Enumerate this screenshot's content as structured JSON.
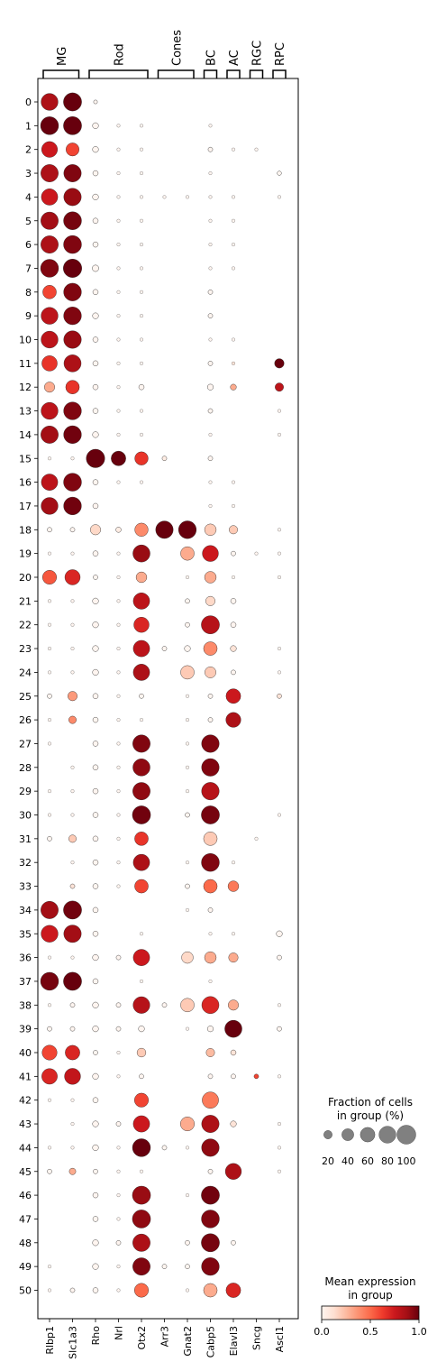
{
  "chart_data": {
    "type": "dotplot",
    "genes": [
      "Rlbp1",
      "Slc1a3",
      "Rho",
      "Nrl",
      "Otx2",
      "Arr3",
      "Gnat2",
      "Cabp5",
      "Elavl3",
      "Sncg",
      "Ascl1"
    ],
    "groups": [
      "0",
      "1",
      "2",
      "3",
      "4",
      "5",
      "6",
      "7",
      "8",
      "9",
      "10",
      "11",
      "12",
      "13",
      "14",
      "15",
      "16",
      "17",
      "18",
      "19",
      "20",
      "21",
      "22",
      "23",
      "24",
      "25",
      "26",
      "27",
      "28",
      "29",
      "30",
      "31",
      "32",
      "33",
      "34",
      "35",
      "36",
      "37",
      "38",
      "39",
      "40",
      "41",
      "42",
      "43",
      "44",
      "45",
      "46",
      "47",
      "48",
      "49",
      "50"
    ],
    "gene_groups": [
      {
        "label": "MG",
        "start": 0,
        "end": 1
      },
      {
        "label": "Rod",
        "start": 2,
        "end": 4
      },
      {
        "label": "Cones",
        "start": 5,
        "end": 6
      },
      {
        "label": "BC",
        "start": 7,
        "end": 7
      },
      {
        "label": "AC",
        "start": 8,
        "end": 8
      },
      {
        "label": "RGC",
        "start": 9,
        "end": 9
      },
      {
        "label": "RPC",
        "start": 10,
        "end": 10
      }
    ],
    "fraction": [
      [
        80,
        92,
        4,
        0,
        0,
        0,
        0,
        0,
        0,
        0,
        0
      ],
      [
        90,
        92,
        10,
        3,
        3,
        0,
        0,
        3,
        0,
        0,
        0
      ],
      [
        70,
        48,
        10,
        3,
        3,
        0,
        0,
        6,
        3,
        3,
        0
      ],
      [
        85,
        85,
        8,
        3,
        3,
        0,
        0,
        3,
        0,
        0,
        5
      ],
      [
        75,
        85,
        10,
        3,
        3,
        3,
        3,
        3,
        3,
        0,
        3
      ],
      [
        85,
        90,
        8,
        3,
        3,
        0,
        0,
        3,
        3,
        0,
        0
      ],
      [
        85,
        90,
        8,
        3,
        3,
        0,
        0,
        3,
        3,
        0,
        0
      ],
      [
        90,
        95,
        12,
        3,
        3,
        0,
        0,
        3,
        3,
        0,
        0
      ],
      [
        52,
        88,
        8,
        3,
        3,
        0,
        0,
        6,
        0,
        0,
        0
      ],
      [
        80,
        88,
        10,
        3,
        3,
        0,
        0,
        6,
        0,
        0,
        0
      ],
      [
        80,
        86,
        8,
        3,
        3,
        0,
        0,
        3,
        3,
        0,
        0
      ],
      [
        66,
        82,
        8,
        3,
        3,
        0,
        0,
        6,
        3,
        0,
        25
      ],
      [
        30,
        52,
        8,
        3,
        8,
        0,
        0,
        10,
        10,
        0,
        20
      ],
      [
        80,
        88,
        8,
        3,
        3,
        0,
        0,
        6,
        0,
        0,
        3
      ],
      [
        85,
        88,
        10,
        3,
        3,
        0,
        0,
        3,
        0,
        0,
        3
      ],
      [
        3,
        3,
        95,
        60,
        50,
        6,
        0,
        6,
        0,
        0,
        0
      ],
      [
        75,
        90,
        8,
        3,
        3,
        0,
        0,
        3,
        3,
        0,
        0
      ],
      [
        80,
        88,
        8,
        0,
        0,
        0,
        0,
        3,
        3,
        0,
        0
      ],
      [
        6,
        6,
        30,
        8,
        50,
        85,
        88,
        38,
        20,
        0,
        3
      ],
      [
        3,
        3,
        8,
        3,
        82,
        0,
        52,
        72,
        6,
        3,
        3
      ],
      [
        55,
        65,
        6,
        3,
        32,
        0,
        3,
        38,
        3,
        0,
        3
      ],
      [
        3,
        3,
        10,
        3,
        75,
        0,
        6,
        25,
        8,
        0,
        0
      ],
      [
        3,
        3,
        10,
        3,
        65,
        0,
        6,
        92,
        8,
        0,
        0
      ],
      [
        3,
        3,
        10,
        3,
        75,
        6,
        10,
        52,
        10,
        0,
        3
      ],
      [
        3,
        3,
        10,
        3,
        75,
        0,
        52,
        35,
        6,
        0,
        3
      ],
      [
        6,
        25,
        8,
        3,
        6,
        0,
        3,
        6,
        60,
        0,
        6
      ],
      [
        3,
        16,
        8,
        3,
        3,
        0,
        3,
        6,
        62,
        0,
        0
      ],
      [
        3,
        0,
        8,
        3,
        85,
        0,
        3,
        86,
        0,
        0,
        0
      ],
      [
        0,
        3,
        8,
        3,
        82,
        0,
        3,
        86,
        0,
        0,
        0
      ],
      [
        3,
        3,
        8,
        3,
        85,
        0,
        3,
        86,
        0,
        0,
        0
      ],
      [
        3,
        3,
        8,
        3,
        92,
        0,
        6,
        92,
        0,
        0,
        3
      ],
      [
        6,
        16,
        8,
        3,
        52,
        0,
        0,
        52,
        0,
        3,
        0
      ],
      [
        0,
        3,
        8,
        3,
        75,
        0,
        3,
        90,
        3,
        0,
        0
      ],
      [
        0,
        6,
        8,
        3,
        52,
        0,
        6,
        52,
        32,
        0,
        0
      ],
      [
        85,
        92,
        8,
        0,
        0,
        0,
        3,
        6,
        0,
        0,
        0
      ],
      [
        80,
        85,
        8,
        0,
        3,
        0,
        0,
        3,
        3,
        0,
        10
      ],
      [
        3,
        3,
        10,
        6,
        75,
        0,
        38,
        38,
        25,
        0,
        6
      ],
      [
        90,
        92,
        8,
        0,
        3,
        0,
        0,
        3,
        0,
        0,
        0
      ],
      [
        3,
        6,
        10,
        6,
        78,
        6,
        52,
        82,
        30,
        0,
        3
      ],
      [
        6,
        6,
        10,
        6,
        10,
        0,
        3,
        10,
        82,
        0,
        6
      ],
      [
        62,
        60,
        6,
        3,
        22,
        0,
        0,
        20,
        8,
        0,
        0
      ],
      [
        68,
        72,
        10,
        3,
        6,
        0,
        0,
        6,
        6,
        6,
        3
      ],
      [
        3,
        3,
        8,
        0,
        55,
        0,
        0,
        75,
        0,
        0,
        0
      ],
      [
        0,
        3,
        10,
        6,
        75,
        0,
        55,
        85,
        10,
        0,
        3
      ],
      [
        3,
        3,
        10,
        3,
        90,
        6,
        3,
        86,
        0,
        0,
        3
      ],
      [
        6,
        12,
        6,
        3,
        3,
        0,
        0,
        6,
        72,
        0,
        3
      ],
      [
        0,
        0,
        8,
        3,
        92,
        0,
        3,
        92,
        0,
        0,
        0
      ],
      [
        0,
        0,
        8,
        3,
        92,
        0,
        0,
        90,
        0,
        0,
        0
      ],
      [
        0,
        0,
        10,
        6,
        85,
        0,
        6,
        92,
        6,
        0,
        0
      ],
      [
        3,
        0,
        10,
        3,
        85,
        6,
        6,
        88,
        0,
        0,
        0
      ],
      [
        3,
        6,
        8,
        3,
        55,
        0,
        3,
        52,
        60,
        0,
        0
      ]
    ],
    "mean_expression": [
      [
        0.85,
        1.0,
        0,
        0,
        0,
        0,
        0,
        0,
        0,
        0,
        0
      ],
      [
        1.0,
        1.0,
        0,
        0,
        0,
        0,
        0,
        0,
        0,
        0,
        0
      ],
      [
        0.75,
        0.6,
        0,
        0,
        0,
        0,
        0,
        0,
        0,
        0,
        0
      ],
      [
        0.85,
        0.95,
        0,
        0,
        0,
        0,
        0,
        0,
        0,
        0,
        0
      ],
      [
        0.75,
        0.9,
        0,
        0,
        0,
        0,
        0,
        0,
        0,
        0,
        0
      ],
      [
        0.88,
        0.97,
        0,
        0,
        0,
        0,
        0,
        0,
        0,
        0,
        0
      ],
      [
        0.85,
        0.95,
        0,
        0,
        0,
        0,
        0,
        0,
        0,
        0,
        0
      ],
      [
        0.95,
        1.0,
        0,
        0,
        0,
        0,
        0,
        0,
        0,
        0,
        0
      ],
      [
        0.6,
        0.95,
        0,
        0,
        0,
        0,
        0,
        0,
        0,
        0,
        0
      ],
      [
        0.8,
        0.95,
        0,
        0,
        0,
        0,
        0,
        0,
        0,
        0,
        0
      ],
      [
        0.8,
        0.9,
        0,
        0,
        0,
        0,
        0,
        0,
        0,
        0,
        0
      ],
      [
        0.65,
        0.85,
        0,
        0,
        0,
        0,
        0,
        0,
        0.1,
        0,
        1.0
      ],
      [
        0.3,
        0.65,
        0,
        0,
        0,
        0,
        0,
        0,
        0.3,
        0,
        0.8
      ],
      [
        0.8,
        0.95,
        0,
        0,
        0,
        0,
        0,
        0,
        0,
        0,
        0
      ],
      [
        0.88,
        0.98,
        0,
        0,
        0,
        0,
        0,
        0,
        0,
        0,
        0
      ],
      [
        0,
        0,
        1.0,
        1.0,
        0.65,
        0.05,
        0,
        0,
        0,
        0,
        0
      ],
      [
        0.8,
        0.95,
        0,
        0,
        0,
        0,
        0,
        0,
        0,
        0,
        0
      ],
      [
        0.88,
        0.98,
        0,
        0,
        0,
        0,
        0,
        0,
        0,
        0,
        0
      ],
      [
        0,
        0,
        0.15,
        0.05,
        0.4,
        1.0,
        1.0,
        0.2,
        0.2,
        0,
        0
      ],
      [
        0,
        0,
        0,
        0,
        0.9,
        0,
        0.3,
        0.75,
        0,
        0,
        0
      ],
      [
        0.55,
        0.7,
        0,
        0,
        0.3,
        0,
        0,
        0.3,
        0,
        0,
        0
      ],
      [
        0,
        0,
        0,
        0,
        0.8,
        0,
        0,
        0.15,
        0,
        0,
        0
      ],
      [
        0,
        0,
        0,
        0,
        0.7,
        0,
        0,
        0.82,
        0,
        0,
        0
      ],
      [
        0,
        0,
        0,
        0,
        0.8,
        0,
        0,
        0.4,
        0.1,
        0,
        0
      ],
      [
        0,
        0,
        0,
        0,
        0.85,
        0,
        0.2,
        0.2,
        0,
        0,
        0
      ],
      [
        0,
        0.35,
        0,
        0,
        0,
        0,
        0,
        0,
        0.75,
        0,
        0.1
      ],
      [
        0,
        0.4,
        0,
        0,
        0,
        0,
        0,
        0,
        0.85,
        0,
        0
      ],
      [
        0,
        0,
        0,
        0,
        0.95,
        0,
        0,
        0.95,
        0,
        0,
        0
      ],
      [
        0,
        0,
        0,
        0,
        0.92,
        0,
        0,
        0.95,
        0,
        0,
        0
      ],
      [
        0,
        0,
        0,
        0,
        0.92,
        0,
        0,
        0.82,
        0,
        0,
        0
      ],
      [
        0,
        0,
        0,
        0,
        0.98,
        0,
        0,
        0.97,
        0,
        0,
        0
      ],
      [
        0,
        0.2,
        0,
        0,
        0.65,
        0,
        0,
        0.2,
        0,
        0,
        0
      ],
      [
        0,
        0,
        0,
        0,
        0.85,
        0,
        0,
        0.95,
        0,
        0,
        0
      ],
      [
        0,
        0.1,
        0,
        0,
        0.6,
        0,
        0,
        0.5,
        0.45,
        0,
        0
      ],
      [
        0.88,
        0.98,
        0,
        0,
        0,
        0,
        0,
        0,
        0,
        0,
        0
      ],
      [
        0.75,
        0.88,
        0,
        0,
        0,
        0,
        0,
        0,
        0,
        0,
        0
      ],
      [
        0,
        0,
        0,
        0,
        0.75,
        0,
        0.15,
        0.3,
        0.3,
        0,
        0
      ],
      [
        0.97,
        1.0,
        0,
        0,
        0,
        0,
        0,
        0,
        0,
        0,
        0
      ],
      [
        0,
        0,
        0,
        0,
        0.82,
        0,
        0.2,
        0.7,
        0.3,
        0,
        0
      ],
      [
        0,
        0,
        0,
        0,
        0,
        0,
        0,
        0,
        1.0,
        0,
        0
      ],
      [
        0.6,
        0.7,
        0,
        0,
        0.2,
        0,
        0,
        0.25,
        0.1,
        0,
        0
      ],
      [
        0.7,
        0.78,
        0,
        0,
        0,
        0,
        0,
        0,
        0,
        0.6,
        0
      ],
      [
        0,
        0,
        0,
        0,
        0.6,
        0,
        0,
        0.45,
        0,
        0,
        0
      ],
      [
        0,
        0,
        0,
        0,
        0.75,
        0,
        0.3,
        0.85,
        0.1,
        0,
        0
      ],
      [
        0,
        0,
        0,
        0,
        1.0,
        0,
        0,
        0.92,
        0,
        0,
        0
      ],
      [
        0,
        0.3,
        0,
        0,
        0,
        0,
        0,
        0,
        0.85,
        0,
        0
      ],
      [
        0,
        0,
        0,
        0,
        0.9,
        0,
        0,
        0.98,
        0,
        0,
        0
      ],
      [
        0,
        0,
        0,
        0,
        0.92,
        0,
        0,
        0.95,
        0,
        0,
        0
      ],
      [
        0,
        0,
        0,
        0,
        0.85,
        0,
        0,
        0.97,
        0,
        0,
        0
      ],
      [
        0,
        0,
        0,
        0,
        0.95,
        0,
        0,
        0.95,
        0,
        0,
        0
      ],
      [
        0,
        0,
        0,
        0,
        0.5,
        0,
        0,
        0.3,
        0.7,
        0,
        0
      ]
    ],
    "size_legend": {
      "title_line1": "Fraction of cells",
      "title_line2": "in group (%)",
      "values": [
        20,
        40,
        60,
        80,
        100
      ]
    },
    "color_legend": {
      "title_line1": "Mean expression",
      "title_line2": "in group",
      "ticks": [
        "0.0",
        "0.5",
        "1.0"
      ],
      "range": [
        0,
        1
      ],
      "colormap": "Reds",
      "colors": [
        "#fff5f0",
        "#fee0d2",
        "#fcbba1",
        "#fc9272",
        "#fb6a4a",
        "#ef3b2c",
        "#cb181d",
        "#a50f15",
        "#67000d"
      ]
    }
  }
}
